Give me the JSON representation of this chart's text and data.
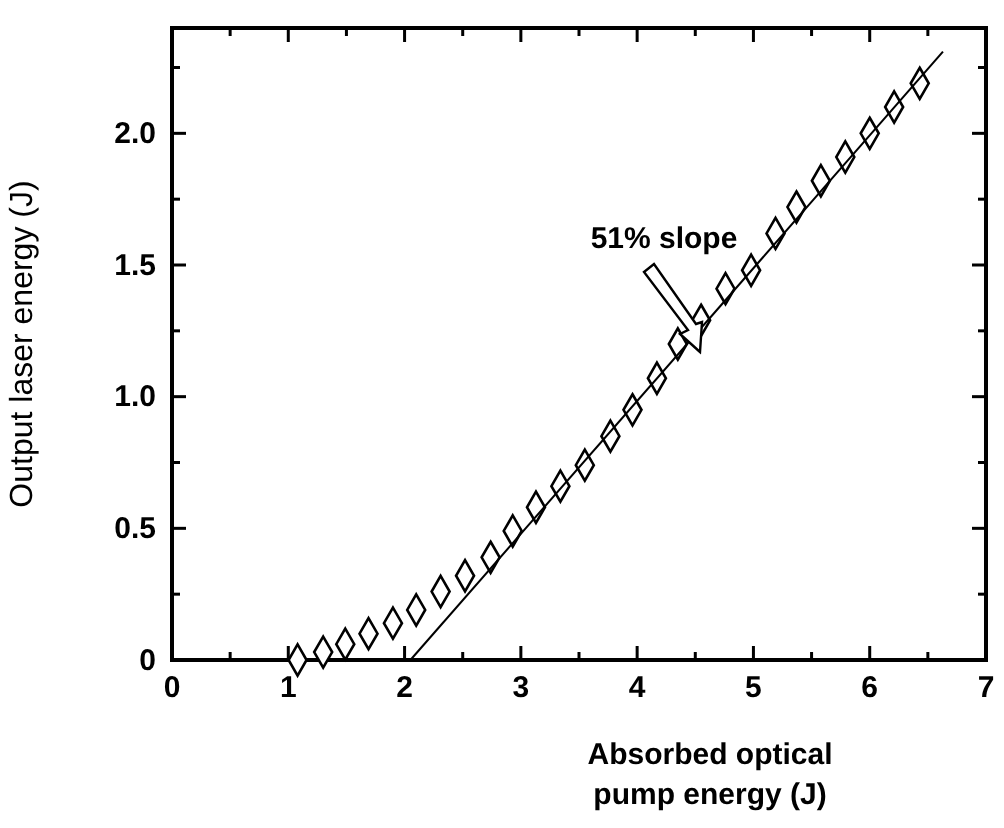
{
  "chart_data": {
    "type": "scatter",
    "xlabel": "Absorbed optical pump energy (J)",
    "ylabel": "Output laser energy (J)",
    "xlim": [
      0,
      7
    ],
    "ylim": [
      0,
      2.4
    ],
    "xticks": [
      0,
      {
        "value": 0.5,
        "label": null
      },
      1,
      {
        "value": 1.5,
        "label": null
      },
      2,
      {
        "value": 2.5,
        "label": null
      },
      3,
      {
        "value": 3.5,
        "label": null
      },
      4,
      {
        "value": 4.5,
        "label": null
      },
      5,
      {
        "value": 5.5,
        "label": null
      },
      6,
      {
        "value": 6.5,
        "label": null
      },
      7
    ],
    "yticks": [
      0,
      {
        "value": 0.25,
        "label": null
      },
      {
        "value": 0.5,
        "label": "0.5"
      },
      {
        "value": 0.75,
        "label": null
      },
      {
        "value": 1,
        "label": "1.0"
      },
      {
        "value": 1.25,
        "label": null
      },
      {
        "value": 1.5,
        "label": "1.5"
      },
      {
        "value": 1.75,
        "label": null
      },
      {
        "value": 2,
        "label": "2.0"
      },
      {
        "value": 2.25,
        "label": null
      }
    ],
    "grid": false,
    "series": [
      {
        "marker": "diamond",
        "color": "#000000",
        "x": [
          1.08,
          1.3,
          1.49,
          1.69,
          1.9,
          2.1,
          2.31,
          2.52,
          2.74,
          2.93,
          3.13,
          3.34,
          3.55,
          3.77,
          3.96,
          4.17,
          4.35,
          4.55,
          4.76,
          4.98,
          5.19,
          5.37,
          5.58,
          5.79,
          6.0,
          6.21,
          6.43
        ],
        "values": [
          0,
          0.03,
          0.06,
          0.1,
          0.14,
          0.19,
          0.26,
          0.32,
          0.39,
          0.49,
          0.58,
          0.66,
          0.74,
          0.85,
          0.95,
          1.07,
          1.2,
          1.29,
          1.41,
          1.48,
          1.62,
          1.72,
          1.82,
          1.91,
          2.0,
          2.1,
          2.19
        ]
      },
      {
        "type": "line",
        "color": "#000000",
        "x": [
          2.05,
          6.63
        ],
        "values": [
          0,
          2.31
        ]
      }
    ],
    "annotations": [
      "51% slope"
    ]
  }
}
